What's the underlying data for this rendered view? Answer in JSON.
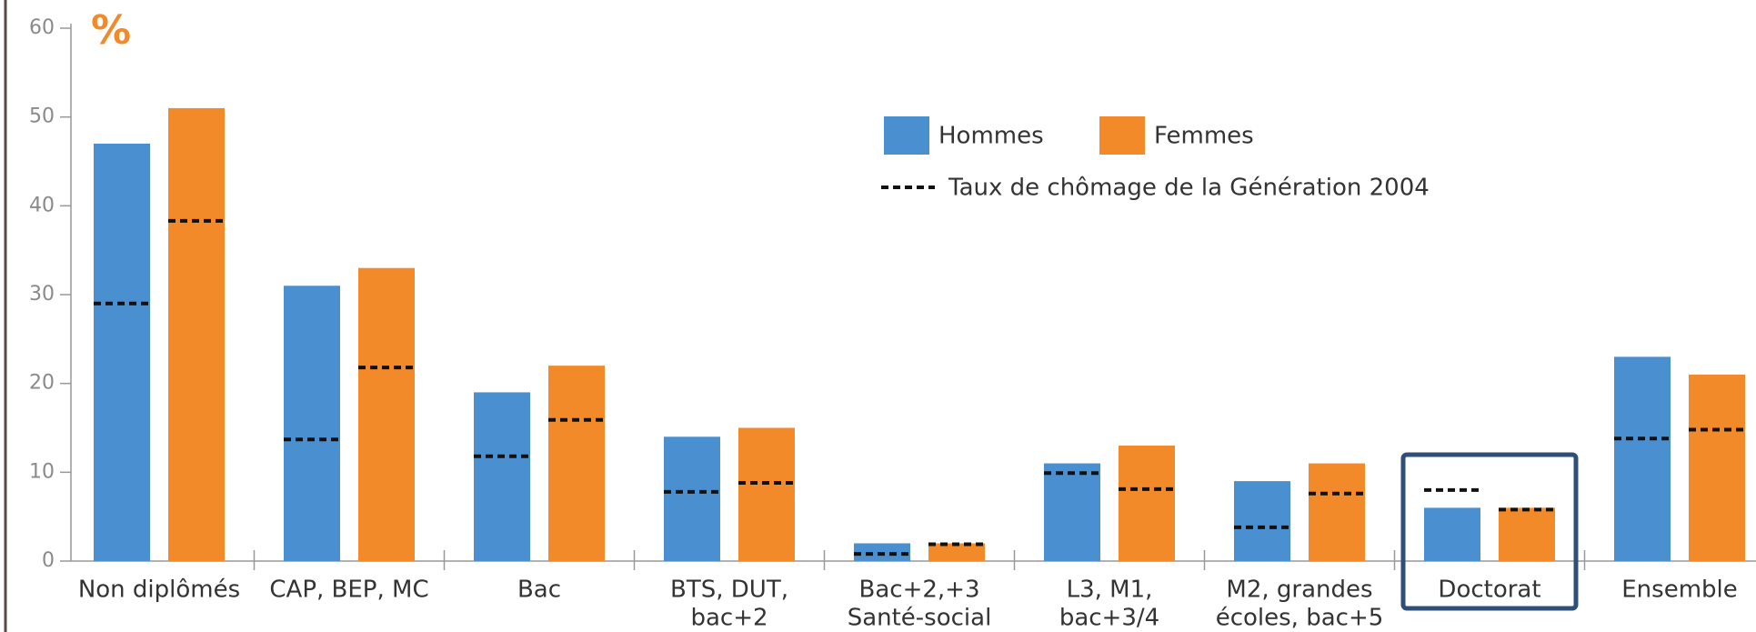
{
  "chart_data": {
    "type": "bar",
    "y_unit": "%",
    "categories": [
      [
        "Non diplômés"
      ],
      [
        "CAP, BEP, MC"
      ],
      [
        "Bac"
      ],
      [
        "BTS, DUT,",
        "bac+2"
      ],
      [
        "Bac+2,+3",
        "Santé-social"
      ],
      [
        "L3, M1,",
        "bac+3/4"
      ],
      [
        "M2, grandes",
        "écoles, bac+5"
      ],
      [
        "Doctorat"
      ],
      [
        "Ensemble"
      ]
    ],
    "series": [
      {
        "name": "Hommes",
        "color": "#4a90d0",
        "values": [
          47,
          31,
          19,
          14,
          2,
          11,
          9,
          6,
          23
        ]
      },
      {
        "name": "Femmes",
        "color": "#f28a2a",
        "values": [
          51,
          33,
          22,
          15,
          2,
          13,
          11,
          6,
          21
        ]
      }
    ],
    "reference": {
      "name": "Taux de chômage de la Génération 2004",
      "color": "#111111",
      "values": [
        [
          29,
          13.7,
          11.8,
          7.8,
          0.8,
          9.9,
          3.8,
          8,
          13.8
        ],
        [
          38.3,
          21.8,
          15.9,
          8.8,
          1.9,
          8.1,
          7.6,
          5.8,
          14.8
        ]
      ]
    },
    "highlight_category": 7,
    "ylim": [
      0,
      60
    ],
    "yticks": [
      0,
      10,
      20,
      30,
      40,
      50,
      60
    ]
  }
}
